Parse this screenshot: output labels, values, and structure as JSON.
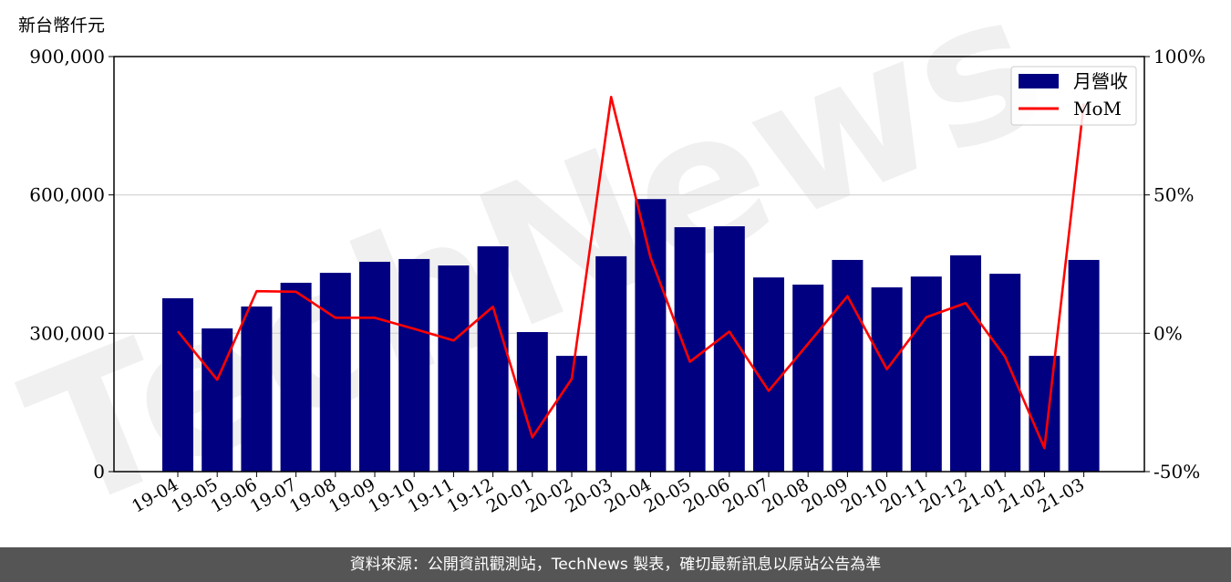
{
  "chart_data": {
    "type": "bar+line",
    "y_unit_label": "新台幣仟元",
    "categories": [
      "19-04",
      "19-05",
      "19-06",
      "19-07",
      "19-08",
      "19-09",
      "19-10",
      "19-11",
      "19-12",
      "20-01",
      "20-02",
      "20-03",
      "20-04",
      "20-05",
      "20-06",
      "20-07",
      "20-08",
      "20-09",
      "20-10",
      "20-11",
      "20-12",
      "21-01",
      "21-02",
      "21-03"
    ],
    "series": [
      {
        "name": "月營收",
        "type": "bar",
        "axis": "left",
        "color": "#000080",
        "values": [
          376000,
          310500,
          358000,
          409500,
          431000,
          455000,
          461000,
          447000,
          488500,
          302600,
          251000,
          467000,
          591000,
          530000,
          532000,
          421000,
          405500,
          459000,
          399500,
          423000,
          469000,
          429000,
          251000,
          459000
        ]
      },
      {
        "name": "MoM",
        "type": "line",
        "axis": "right",
        "unit": "%",
        "color": "#ff0000",
        "values": [
          0.7,
          -16.8,
          15.2,
          15.0,
          5.6,
          5.6,
          1.6,
          -2.6,
          9.6,
          -37.6,
          -16.5,
          85.4,
          27.4,
          -10.3,
          0.6,
          -20.8,
          -3.8,
          13.4,
          -13.0,
          5.8,
          10.9,
          -8.5,
          -41.5,
          83.0
        ]
      }
    ],
    "y_left": {
      "range": [
        0,
        900000
      ],
      "ticks": [
        0,
        300000,
        600000,
        900000
      ],
      "tick_labels": [
        "0",
        "300,000",
        "600,000",
        "900,000"
      ]
    },
    "y_right": {
      "range": [
        -50,
        100
      ],
      "ticks": [
        -50,
        0,
        50,
        100
      ],
      "tick_labels": [
        "-50%",
        "0%",
        "50%",
        "100%"
      ]
    },
    "grid": "horizontal",
    "legend": "top-right",
    "watermark": "TechNews"
  },
  "footer": {
    "source": "資料來源：公開資訊觀測站，TechNews 製表，確切最新訊息以原站公告為準"
  }
}
